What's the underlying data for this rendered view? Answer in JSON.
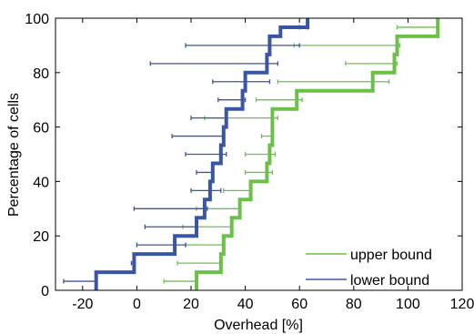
{
  "chart_data": {
    "type": "line",
    "xlabel": "Overhead [%]",
    "ylabel": "Percentage of cells",
    "xlim": [
      -30,
      120
    ],
    "ylim": [
      0,
      100
    ],
    "xticks": [
      -20,
      0,
      20,
      40,
      60,
      80,
      100,
      120
    ],
    "yticks": [
      0,
      20,
      40,
      60,
      80,
      100
    ],
    "grid": false,
    "legend_position": "bottom-right",
    "series": [
      {
        "name": "upper bound",
        "color": "#6cc04a",
        "step_x": [
          22,
          22,
          31,
          31,
          32,
          32,
          35,
          35,
          38,
          38,
          42,
          42,
          48,
          48,
          49,
          49,
          50,
          50,
          59,
          59,
          87,
          87,
          95,
          95,
          96,
          96,
          111,
          111
        ],
        "step_y": [
          0,
          6.67,
          6.67,
          13.33,
          13.33,
          20,
          20,
          26.67,
          26.67,
          33.33,
          33.33,
          40,
          40,
          46.67,
          46.67,
          53.33,
          53.33,
          66.67,
          66.67,
          73.33,
          73.33,
          80,
          80,
          86.67,
          86.67,
          93.33,
          93.33,
          100
        ],
        "error_bars": [
          {
            "y": 3.33,
            "xmin": 10,
            "xmax": 22
          },
          {
            "y": 10,
            "xmin": 15,
            "xmax": 31
          },
          {
            "y": 16.67,
            "xmin": 18,
            "xmax": 32
          },
          {
            "y": 23.33,
            "xmin": 17,
            "xmax": 35
          },
          {
            "y": 30,
            "xmin": 22,
            "xmax": 38
          },
          {
            "y": 36.67,
            "xmin": 32,
            "xmax": 42
          },
          {
            "y": 43.33,
            "xmin": 40,
            "xmax": 50
          },
          {
            "y": 50,
            "xmin": 40,
            "xmax": 51
          },
          {
            "y": 56.67,
            "xmin": 46,
            "xmax": 50
          },
          {
            "y": 63.33,
            "xmin": 25,
            "xmax": 52
          },
          {
            "y": 70,
            "xmin": 44,
            "xmax": 61
          },
          {
            "y": 76.67,
            "xmin": 52,
            "xmax": 93
          },
          {
            "y": 83.33,
            "xmin": 77,
            "xmax": 96
          },
          {
            "y": 90,
            "xmin": 58,
            "xmax": 97
          },
          {
            "y": 96.67,
            "xmin": 96,
            "xmax": 111
          }
        ]
      },
      {
        "name": "lower bound",
        "color": "#3a55a4",
        "step_x": [
          -15,
          -15,
          -1,
          -1,
          14,
          14,
          22,
          22,
          25,
          25,
          27,
          27,
          28,
          28,
          31,
          31,
          32,
          32,
          33,
          33,
          39,
          39,
          40,
          40,
          48,
          48,
          49,
          49,
          53,
          53,
          63,
          63
        ],
        "step_y": [
          0,
          6.67,
          6.67,
          13.33,
          13.33,
          20,
          20,
          26.67,
          26.67,
          33.33,
          33.33,
          40,
          40,
          46.67,
          46.67,
          53.33,
          53.33,
          60,
          60,
          66.67,
          66.67,
          73.33,
          73.33,
          80,
          80,
          86.67,
          86.67,
          93.33,
          93.33,
          96.67,
          96.67,
          100
        ],
        "error_bars": [
          {
            "y": 3.33,
            "xmin": -27,
            "xmax": -15
          },
          {
            "y": 10,
            "xmin": -2,
            "xmax": -1
          },
          {
            "y": 16.67,
            "xmin": 0,
            "xmax": 18
          },
          {
            "y": 23.33,
            "xmin": 3,
            "xmax": 22
          },
          {
            "y": 30,
            "xmin": -1,
            "xmax": 26
          },
          {
            "y": 36.67,
            "xmin": 20,
            "xmax": 31
          },
          {
            "y": 43.33,
            "xmin": 22,
            "xmax": 28
          },
          {
            "y": 50,
            "xmin": 18,
            "xmax": 33
          },
          {
            "y": 56.67,
            "xmin": 13,
            "xmax": 32
          },
          {
            "y": 63.33,
            "xmin": 20,
            "xmax": 33
          },
          {
            "y": 70,
            "xmin": 30,
            "xmax": 40
          },
          {
            "y": 76.67,
            "xmin": 28,
            "xmax": 49
          },
          {
            "y": 83.33,
            "xmin": 5,
            "xmax": 52
          },
          {
            "y": 90,
            "xmin": 18,
            "xmax": 60
          },
          {
            "y": 96.67,
            "xmin": 60,
            "xmax": 63
          }
        ]
      }
    ]
  }
}
